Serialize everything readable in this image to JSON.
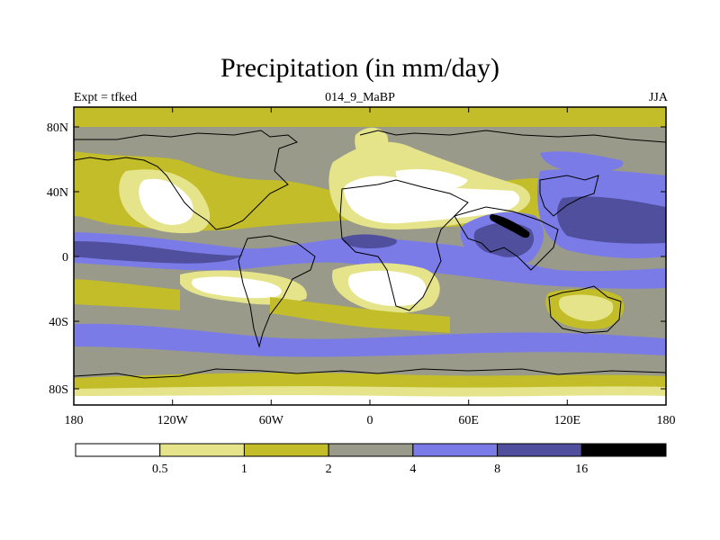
{
  "title": "Precipitation (in mm/day)",
  "left_label": "Expt = tfked",
  "center_label": "014_9_MaBP",
  "right_label": "JJA",
  "lat_ticks": [
    "80N",
    "40N",
    "0",
    "40S",
    "80S"
  ],
  "lon_ticks": [
    "180",
    "120W",
    "60W",
    "0",
    "60E",
    "120E",
    "180"
  ],
  "colorbar": {
    "colors": [
      "#ffffff",
      "#e6e48a",
      "#c2bd28",
      "#9a9a8a",
      "#7b7be8",
      "#4f4f9e",
      "#000000"
    ],
    "labels": [
      "0.5",
      "1",
      "2",
      "4",
      "8",
      "16"
    ]
  },
  "chart_data": {
    "type": "heatmap",
    "title": "Precipitation (in mm/day)",
    "subtitle": "014_9_MaBP",
    "xlabel": "",
    "ylabel": "",
    "xlim": [
      -180,
      180
    ],
    "ylim": [
      -90,
      90
    ],
    "x_ticks": [
      -180,
      -120,
      -60,
      0,
      60,
      120,
      180
    ],
    "y_ticks": [
      80,
      40,
      0,
      -40,
      -80
    ],
    "contour_levels": [
      0.5,
      1,
      2,
      4,
      8,
      16
    ],
    "units": "mm/day",
    "season": "JJA"
  }
}
